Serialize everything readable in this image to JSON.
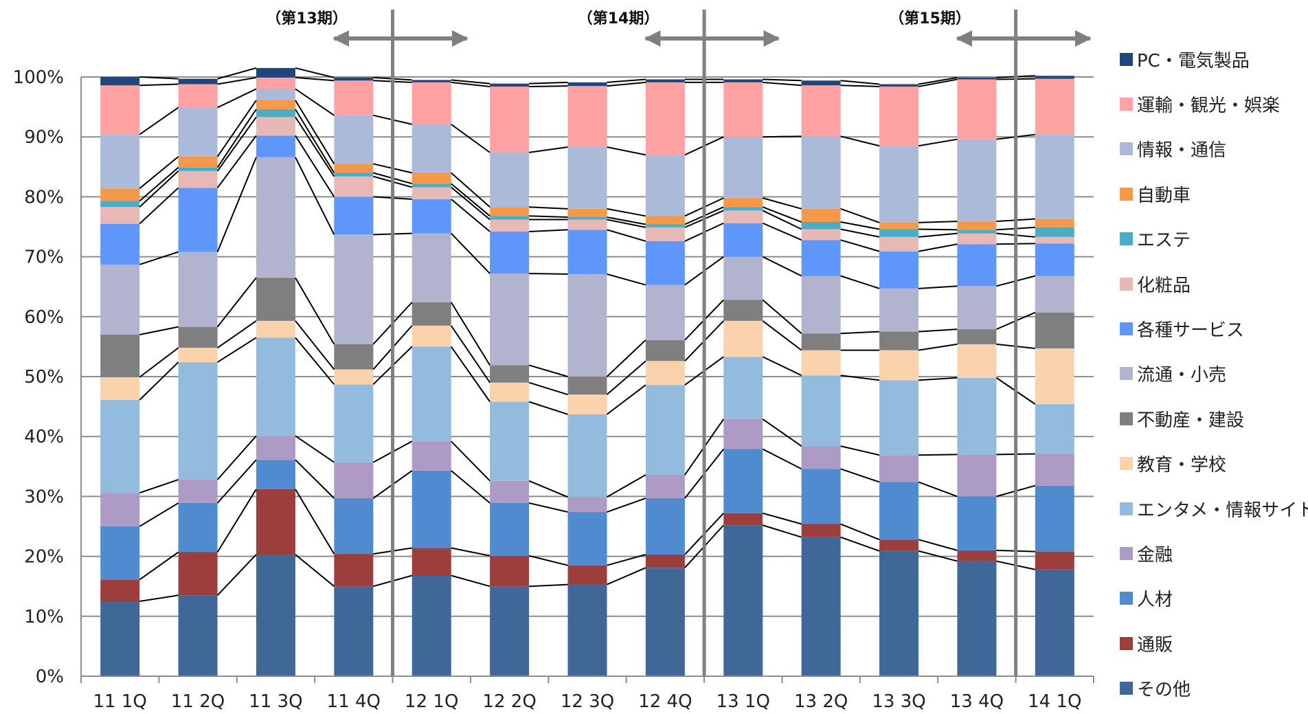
{
  "chart_data": {
    "type": "bar",
    "stacked": true,
    "percent": true,
    "categories": [
      "11 1Q",
      "11 2Q",
      "11 3Q",
      "11 4Q",
      "12 1Q",
      "12 2Q",
      "12 3Q",
      "12 4Q",
      "13 1Q",
      "13 2Q",
      "13 3Q",
      "13 4Q",
      "14 1Q"
    ],
    "y_ticks": [
      "0%",
      "10%",
      "20%",
      "30%",
      "40%",
      "50%",
      "60%",
      "70%",
      "80%",
      "90%",
      "100%"
    ],
    "ylim": [
      0,
      100
    ],
    "grid": true,
    "legend_position": "right",
    "period_labels": [
      {
        "label": "（第13期）",
        "after_category_index": 3
      },
      {
        "label": "（第14期）",
        "after_category_index": 7
      },
      {
        "label": "（第15期）",
        "after_category_index": 11
      }
    ],
    "series": [
      {
        "name": "その他",
        "color": "#3f6899",
        "values": [
          12.5,
          13.5,
          20.3,
          15.0,
          16.8,
          15.0,
          15.3,
          18.1,
          25.2,
          23.2,
          20.9,
          19.2,
          17.8
        ]
      },
      {
        "name": "通販",
        "color": "#9c3e3b",
        "values": [
          3.6,
          7.2,
          10.9,
          5.4,
          4.6,
          5.1,
          3.2,
          2.2,
          2.0,
          2.2,
          1.9,
          1.8,
          3.0
        ]
      },
      {
        "name": "人材",
        "color": "#518bcf",
        "values": [
          8.9,
          8.2,
          4.9,
          9.3,
          12.9,
          8.8,
          8.9,
          9.4,
          10.7,
          9.2,
          9.6,
          9.0,
          11.0
        ]
      },
      {
        "name": "金融",
        "color": "#ad9ac5",
        "values": [
          5.6,
          3.9,
          4.0,
          6.0,
          4.9,
          3.7,
          2.5,
          3.9,
          5.0,
          3.8,
          4.5,
          7.0,
          5.3
        ]
      },
      {
        "name": "エンタメ・情報サイト",
        "color": "#93bbde",
        "values": [
          15.5,
          19.6,
          16.4,
          13.0,
          15.8,
          13.2,
          13.8,
          15.0,
          10.4,
          11.8,
          12.5,
          12.8,
          8.3
        ]
      },
      {
        "name": "教育・学校",
        "color": "#fad3ad",
        "values": [
          3.8,
          2.4,
          2.8,
          2.5,
          3.5,
          3.2,
          3.3,
          4.0,
          6.0,
          4.2,
          5.0,
          5.6,
          9.3
        ]
      },
      {
        "name": "不動産・建設",
        "color": "#7f7f7f",
        "values": [
          7.1,
          3.5,
          7.2,
          4.2,
          3.9,
          2.9,
          3.0,
          3.5,
          3.5,
          2.8,
          3.1,
          2.5,
          6.0
        ]
      },
      {
        "name": "流通・小売",
        "color": "#b2b3cf",
        "values": [
          11.7,
          12.5,
          20.1,
          18.3,
          11.5,
          15.3,
          17.1,
          9.2,
          7.2,
          9.6,
          7.2,
          7.2,
          6.1
        ]
      },
      {
        "name": "各種サービス",
        "color": "#5f96fa",
        "values": [
          6.8,
          10.7,
          3.6,
          6.3,
          5.7,
          7.0,
          7.4,
          7.3,
          5.6,
          6.0,
          6.2,
          7.0,
          5.4
        ]
      },
      {
        "name": "化粧品",
        "color": "#e8b8b7",
        "values": [
          2.8,
          2.8,
          3.1,
          3.4,
          2.0,
          2.0,
          1.7,
          2.3,
          2.1,
          1.8,
          2.4,
          1.8,
          1.1
        ]
      },
      {
        "name": "エステ",
        "color": "#4bacc5",
        "values": [
          1.0,
          0.6,
          1.3,
          0.6,
          0.6,
          0.6,
          0.4,
          0.5,
          0.6,
          1.2,
          1.3,
          0.6,
          1.6
        ]
      },
      {
        "name": "自動車",
        "color": "#f4994a",
        "values": [
          2.1,
          1.8,
          1.5,
          1.5,
          1.8,
          1.5,
          1.4,
          1.4,
          1.5,
          2.2,
          1.1,
          1.4,
          1.4
        ]
      },
      {
        "name": "情報・通信",
        "color": "#abbad8",
        "values": [
          9.0,
          8.2,
          1.9,
          8.1,
          8.1,
          9.1,
          10.3,
          10.2,
          10.2,
          12.1,
          12.8,
          13.7,
          14.1
        ]
      },
      {
        "name": "運輸・観光・娯楽",
        "color": "#fea1a2",
        "values": [
          8.2,
          3.9,
          1.9,
          5.8,
          7.0,
          11.0,
          10.2,
          12.1,
          9.1,
          8.5,
          9.9,
          10.0,
          9.3
        ]
      },
      {
        "name": "PC・電気製品",
        "color": "#20477c",
        "values": [
          1.4,
          0.9,
          1.6,
          0.5,
          0.4,
          0.5,
          0.6,
          0.5,
          0.5,
          0.8,
          0.4,
          0.3,
          0.5
        ]
      }
    ]
  }
}
